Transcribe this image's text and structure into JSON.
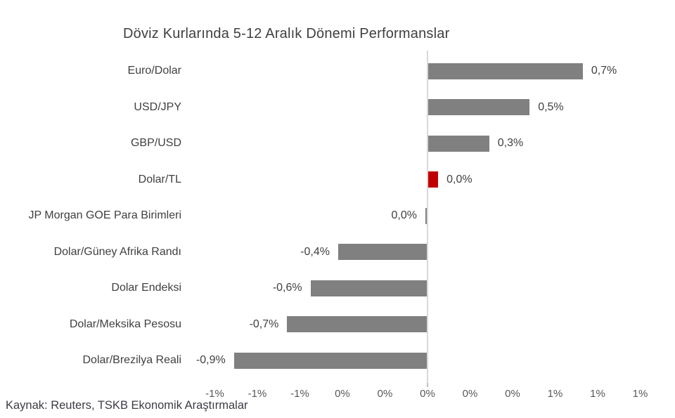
{
  "source": "Kaynak: Reuters, TSKB Ekonomik Araştırmalar",
  "chart_data": {
    "type": "bar",
    "orientation": "horizontal",
    "title": "Döviz Kurlarında 5-12 Aralık Dönemi Performanslar",
    "categories": [
      "Euro/Dolar",
      "USD/JPY",
      "GBP/USD",
      "Dolar/TL",
      "JP Morgan GOE Para Birimleri",
      "Dolar/Güney Afrika Randı",
      "Dolar Endeksi",
      "Dolar/Meksika Pesosu",
      "Dolar/Brezilya Reali"
    ],
    "values": [
      0.7,
      0.5,
      0.3,
      0.0,
      0.0,
      -0.4,
      -0.6,
      -0.7,
      -0.9
    ],
    "value_labels": [
      "0,7%",
      "0,5%",
      "0,3%",
      "0,0%",
      "0,0%",
      "-0,4%",
      "-0,6%",
      "-0,7%",
      "-0,9%"
    ],
    "values_precise": [
      0.73,
      0.48,
      0.29,
      0.05,
      -0.01,
      -0.42,
      -0.55,
      -0.66,
      -0.91
    ],
    "label_sides": [
      "right",
      "right",
      "right",
      "right",
      "left",
      "left",
      "left",
      "left",
      "left"
    ],
    "unit": "%",
    "xlabel": "",
    "ylabel": "",
    "xlim": [
      -1,
      1
    ],
    "x_tick_step": 0.2,
    "x_tick_labels": [
      "-1%",
      "-1%",
      "-1%",
      "0%",
      "0%",
      "0%",
      "0%",
      "0%",
      "1%",
      "1%",
      "1%"
    ],
    "grid": false,
    "legend": "none",
    "bar_color": "#808080",
    "highlight": {
      "index": 3,
      "color": "#c00000"
    },
    "axis_line_color": "#d9d9d9",
    "text_color": "#404040",
    "tick_text_color": "#595959"
  }
}
